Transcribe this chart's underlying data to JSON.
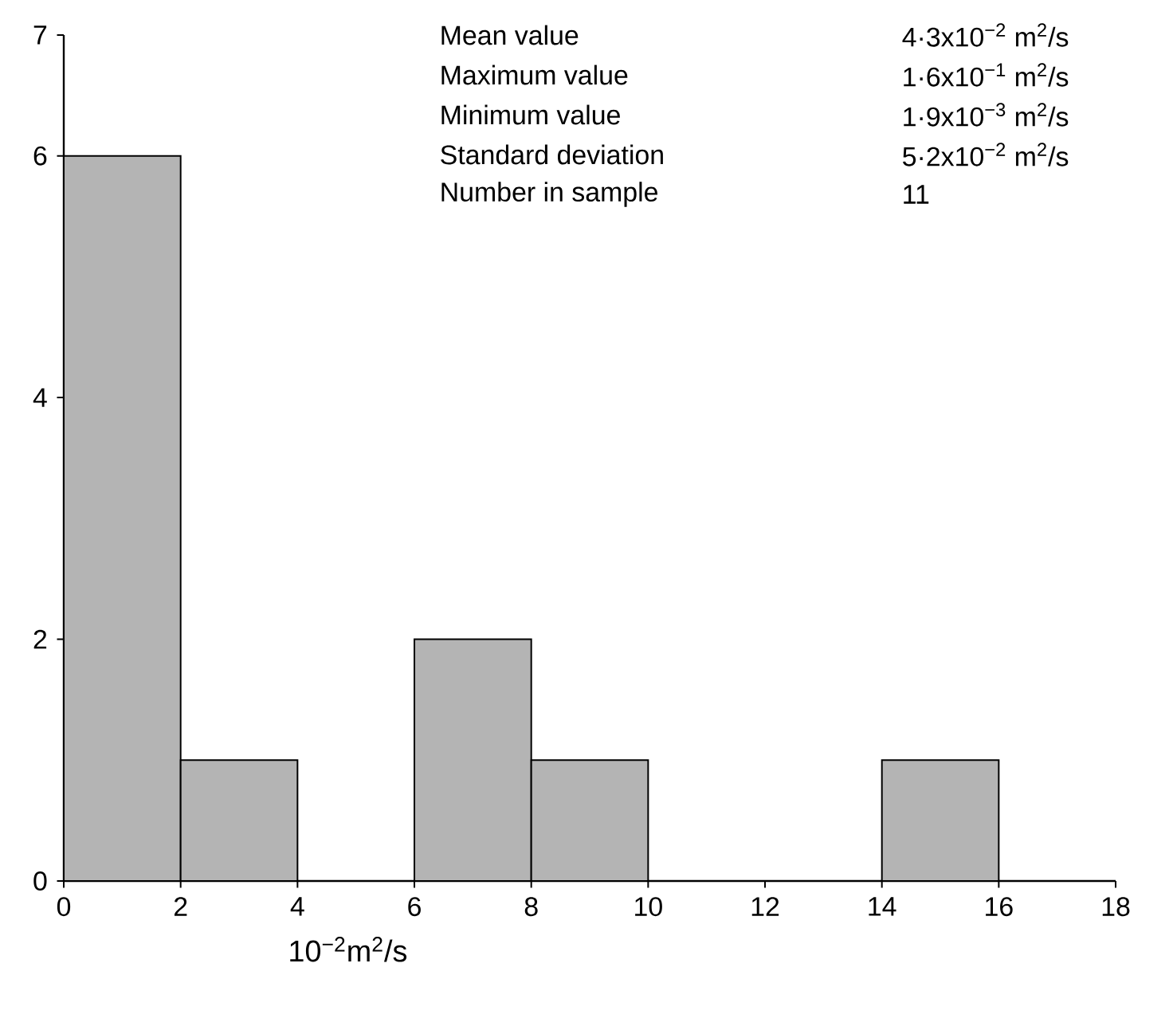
{
  "chart_data": {
    "type": "histogram",
    "bins": [
      0,
      2,
      4,
      6,
      8,
      10,
      12,
      14,
      16
    ],
    "values": [
      6,
      1,
      0,
      2,
      1,
      0,
      0,
      1
    ],
    "color": "#b4b4b4",
    "xlim": [
      0,
      18
    ],
    "ylim": [
      0,
      7
    ],
    "xticks": [
      0,
      2,
      4,
      6,
      8,
      10,
      12,
      14,
      16,
      18
    ],
    "yticks": [
      0,
      2,
      4,
      6,
      7
    ],
    "xlabel": "10$^{−2}$m$^{2}$/s",
    "annotations": [
      "Mean value",
      "4·3x10$^{−2}$ m$^{2}$/s",
      "Maximum value",
      "1·6x10$^{−1}$ m$^{2}$/s",
      "Minimum value",
      "1·9x10$^{−3}$ m$^{2}$/s",
      "Standard deviation",
      "5·2x10$^{−2}$ m$^{2}$/s",
      "Number in sample",
      "11"
    ]
  }
}
